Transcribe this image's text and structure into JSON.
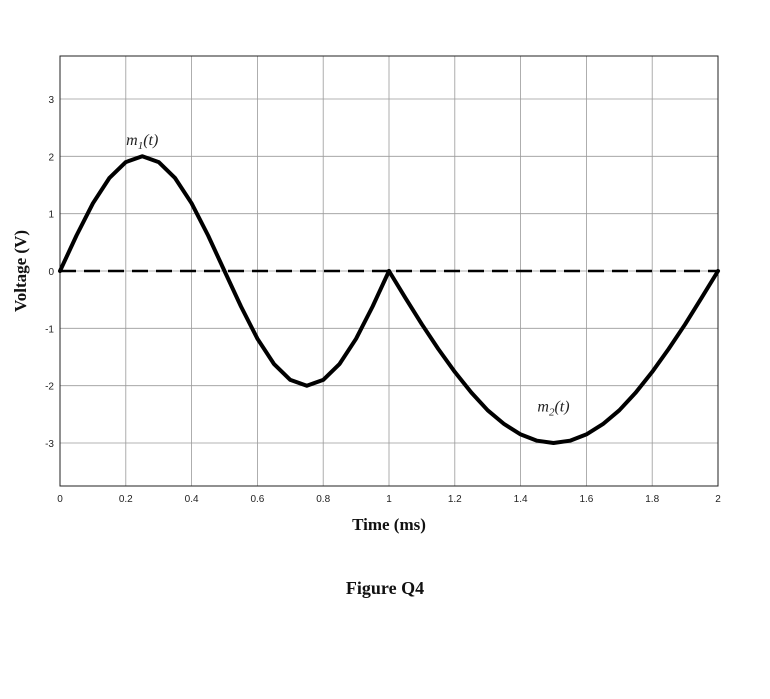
{
  "caption": "Figure Q4",
  "chart_data": {
    "type": "line",
    "xlabel": "Time (ms)",
    "ylabel": "Voltage (V)",
    "xlim": [
      0,
      2
    ],
    "ylim": [
      -3.75,
      3.75
    ],
    "x_ticks": [
      "0",
      "0.2",
      "0.4",
      "0.6",
      "0.8",
      "1",
      "1.2",
      "1.4",
      "1.6",
      "1.8",
      "2"
    ],
    "y_ticks": [
      "3",
      "2",
      "1",
      "0",
      "-1",
      "-2",
      "-3"
    ],
    "grid": true,
    "series": [
      {
        "name": "m_1(t)",
        "color": "#000000",
        "style": "solid",
        "x": [
          0,
          0.05,
          0.1,
          0.15,
          0.2,
          0.25,
          0.3,
          0.35,
          0.4,
          0.45,
          0.5,
          0.55,
          0.6,
          0.65,
          0.7,
          0.75,
          0.8,
          0.85,
          0.9,
          0.95,
          1.0
        ],
        "y": [
          0,
          0.62,
          1.18,
          1.62,
          1.9,
          2.0,
          1.9,
          1.62,
          1.18,
          0.62,
          0,
          -0.62,
          -1.18,
          -1.62,
          -1.9,
          -2.0,
          -1.9,
          -1.62,
          -1.18,
          -0.62,
          0
        ]
      },
      {
        "name": "m_2(t)",
        "color": "#000000",
        "style": "solid",
        "x": [
          1.0,
          1.05,
          1.1,
          1.15,
          1.2,
          1.25,
          1.3,
          1.35,
          1.4,
          1.45,
          1.5,
          1.55,
          1.6,
          1.65,
          1.7,
          1.75,
          1.8,
          1.85,
          1.9,
          1.95,
          2.0
        ],
        "y": [
          0,
          -0.47,
          -0.93,
          -1.36,
          -1.76,
          -2.12,
          -2.43,
          -2.67,
          -2.85,
          -2.96,
          -3.0,
          -2.96,
          -2.85,
          -2.67,
          -2.43,
          -2.12,
          -1.76,
          -1.36,
          -0.93,
          -0.47,
          0
        ]
      },
      {
        "name": "",
        "color": "#000000",
        "style": "dashed",
        "x": [
          0,
          2
        ],
        "y": [
          0,
          0
        ]
      }
    ],
    "annotations": [
      {
        "text_base": "m",
        "text_sub": "1",
        "text_tail": "(t)",
        "x": 0.25,
        "y": 2.2
      },
      {
        "text_base": "m",
        "text_sub": "2",
        "text_tail": "(t)",
        "x": 1.5,
        "y": -2.45
      }
    ]
  }
}
